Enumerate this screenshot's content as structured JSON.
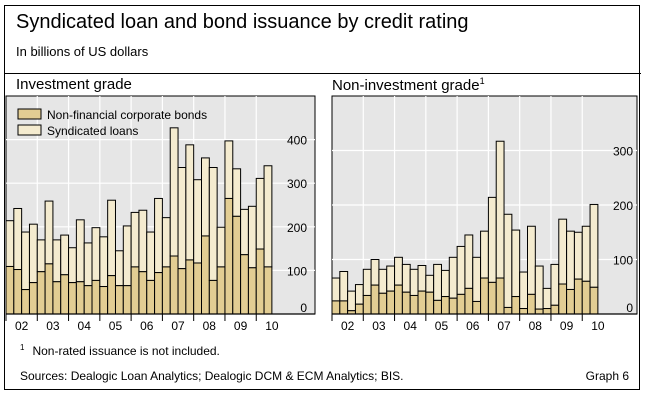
{
  "title": "Syndicated loan and bond issuance by credit rating",
  "subtitle": "In billions of US dollars",
  "footnote_marker": "1",
  "footnote": "Non-rated issuance is not included.",
  "sources": "Sources: Dealogic Loan Analytics; Dealogic DCM & ECM Analytics; BIS.",
  "graph_label": "Graph 6",
  "colors": {
    "bonds": "#e2cd93",
    "loans": "#f4ebcf",
    "plot_bg": "#e6e6e6"
  },
  "chart_data": [
    {
      "type": "bar",
      "stacked": true,
      "title": "Investment grade",
      "legend": [
        "Non-financial corporate bonds",
        "Syndicated loans"
      ],
      "legend_placement": "top-left",
      "x_ticks": [
        "02",
        "03",
        "04",
        "05",
        "06",
        "07",
        "08",
        "09",
        "10"
      ],
      "x_start": "2002Q1",
      "y_ticks": [
        0,
        100,
        200,
        300,
        400
      ],
      "ylim": [
        0,
        500
      ],
      "series": [
        {
          "name": "Non-financial corporate bonds",
          "values": [
            109,
            102,
            56,
            72,
            97,
            115,
            74,
            90,
            72,
            74,
            65,
            77,
            63,
            88,
            65,
            65,
            108,
            97,
            77,
            95,
            108,
            133,
            104,
            124,
            117,
            179,
            77,
            108,
            265,
            224,
            136,
            106,
            149,
            108
          ]
        },
        {
          "name": "Syndicated loans",
          "values": [
            105,
            140,
            132,
            134,
            73,
            144,
            96,
            91,
            80,
            142,
            98,
            121,
            114,
            173,
            80,
            137,
            125,
            141,
            111,
            170,
            113,
            294,
            232,
            264,
            191,
            179,
            259,
            91,
            132,
            109,
            104,
            141,
            162,
            232
          ]
        }
      ]
    },
    {
      "type": "bar",
      "stacked": true,
      "title": "Non-investment grade",
      "title_superscript": "1",
      "x_ticks": [
        "02",
        "03",
        "04",
        "05",
        "06",
        "07",
        "08",
        "09",
        "10"
      ],
      "x_start": "2002Q1",
      "y_ticks": [
        0,
        100,
        200,
        300
      ],
      "ylim": [
        0,
        400
      ],
      "series": [
        {
          "name": "Non-financial corporate bonds",
          "values": [
            24,
            24,
            6,
            18,
            34,
            53,
            38,
            42,
            53,
            40,
            34,
            42,
            40,
            25,
            32,
            29,
            36,
            47,
            23,
            66,
            58,
            66,
            12,
            32,
            10,
            36,
            9,
            10,
            16,
            55,
            45,
            64,
            60,
            49
          ]
        },
        {
          "name": "Syndicated loans",
          "values": [
            42,
            54,
            36,
            36,
            48,
            47,
            44,
            46,
            51,
            51,
            48,
            47,
            31,
            66,
            48,
            75,
            88,
            98,
            81,
            86,
            156,
            251,
            171,
            122,
            67,
            125,
            79,
            37,
            75,
            119,
            107,
            86,
            101,
            152
          ]
        }
      ]
    }
  ]
}
